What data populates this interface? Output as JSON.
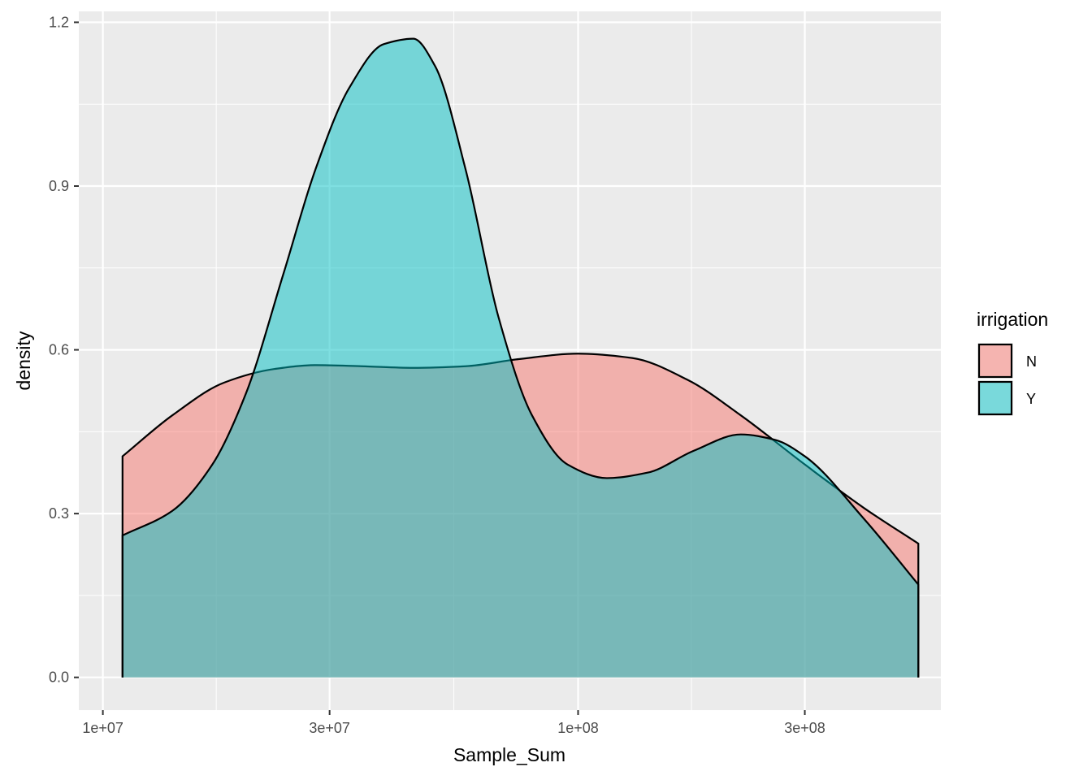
{
  "chart_data": {
    "type": "area",
    "xlabel": "Sample_Sum",
    "ylabel": "density",
    "x_scale": "log10",
    "xlim": [
      8900000,
      580000000
    ],
    "ylim": [
      -0.06,
      1.22
    ],
    "x_ticks": [
      {
        "value": 10000000,
        "label": "1e+07"
      },
      {
        "value": 30000000,
        "label": "3e+07"
      },
      {
        "value": 100000000,
        "label": "1e+08"
      },
      {
        "value": 300000000,
        "label": "3e+08"
      }
    ],
    "x_minor_ticks": [
      17320508,
      54772256,
      173205081
    ],
    "y_ticks": [
      {
        "value": 0.0,
        "label": "0.0"
      },
      {
        "value": 0.3,
        "label": "0.3"
      },
      {
        "value": 0.6,
        "label": "0.6"
      },
      {
        "value": 0.9,
        "label": "0.9"
      },
      {
        "value": 1.2,
        "label": "1.2"
      }
    ],
    "y_minor_ticks": [
      0.15,
      0.45,
      0.75,
      1.05
    ],
    "grid": true,
    "legend": {
      "title": "irrigation",
      "position": "right"
    },
    "series": [
      {
        "name": "N",
        "color": "#F8766D",
        "x": [
          11000000,
          14000000,
          18000000,
          23000000,
          28000000,
          35000000,
          45000000,
          58000000,
          75000000,
          100000000,
          130000000,
          170000000,
          220000000,
          300000000,
          400000000,
          520000000
        ],
        "values": [
          0.405,
          0.48,
          0.54,
          0.565,
          0.572,
          0.57,
          0.567,
          0.57,
          0.583,
          0.593,
          0.585,
          0.545,
          0.48,
          0.39,
          0.31,
          0.245
        ]
      },
      {
        "name": "Y",
        "color": "#00BFC4",
        "x": [
          11000000,
          14000000,
          17000000,
          20000000,
          24000000,
          28000000,
          33000000,
          39000000,
          45000000,
          50000000,
          58000000,
          68000000,
          80000000,
          95000000,
          115000000,
          140000000,
          175000000,
          220000000,
          260000000,
          300000000,
          400000000,
          520000000
        ],
        "values": [
          0.26,
          0.305,
          0.39,
          0.52,
          0.74,
          0.93,
          1.08,
          1.16,
          1.17,
          1.12,
          0.93,
          0.66,
          0.48,
          0.39,
          0.365,
          0.375,
          0.415,
          0.445,
          0.435,
          0.405,
          0.29,
          0.17
        ]
      }
    ]
  }
}
